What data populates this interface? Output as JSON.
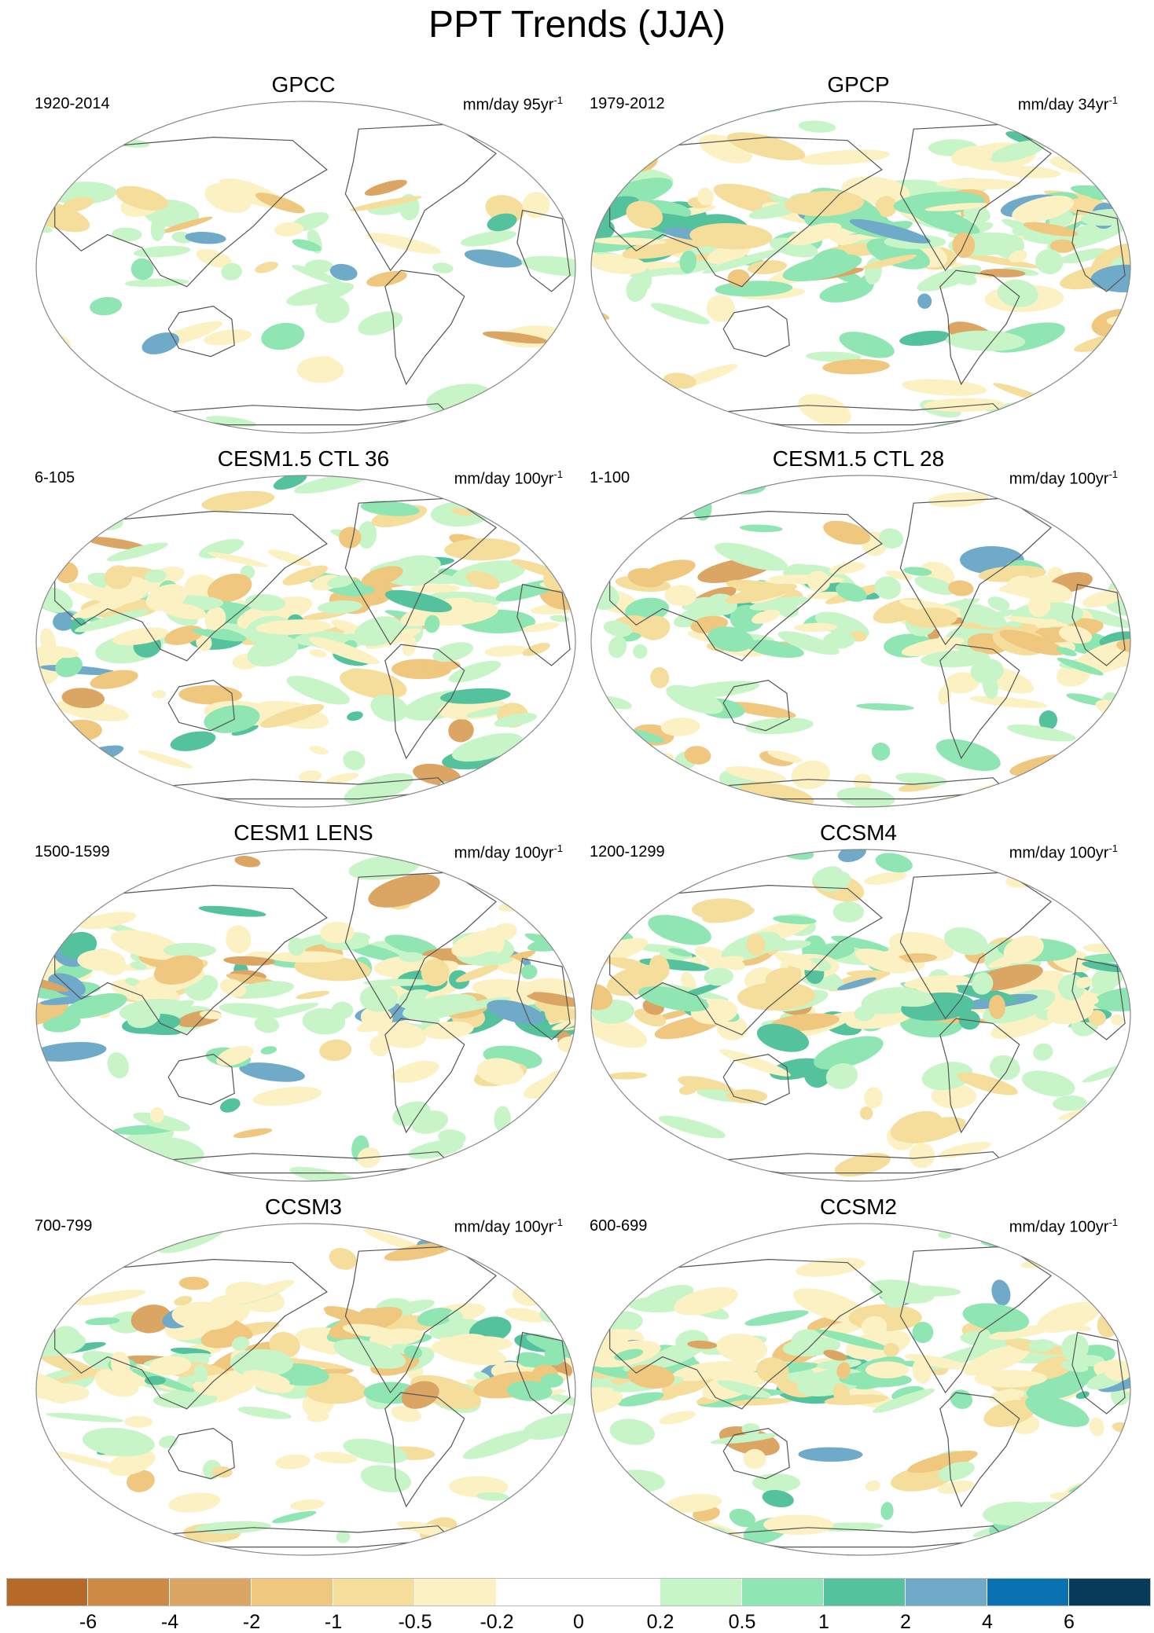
{
  "title": "PPT Trends (JJA)",
  "panels": [
    {
      "title": "GPCC",
      "period": "1920-2014",
      "units": "mm/day 95yr",
      "units_exp": "-1"
    },
    {
      "title": "GPCP",
      "period": "1979-2012",
      "units": "mm/day 34yr",
      "units_exp": "-1"
    },
    {
      "title": "CESM1.5 CTL 36",
      "period": "6-105",
      "units": "mm/day 100yr",
      "units_exp": "-1"
    },
    {
      "title": "CESM1.5 CTL 28",
      "period": "1-100",
      "units": "mm/day 100yr",
      "units_exp": "-1"
    },
    {
      "title": "CESM1 LENS",
      "period": "1500-1599",
      "units": "mm/day 100yr",
      "units_exp": "-1"
    },
    {
      "title": "CCSM4",
      "period": "1200-1299",
      "units": "mm/day 100yr",
      "units_exp": "-1"
    },
    {
      "title": "CCSM3",
      "period": "700-799",
      "units": "mm/day 100yr",
      "units_exp": "-1"
    },
    {
      "title": "CCSM2",
      "period": "600-699",
      "units": "mm/day 100yr",
      "units_exp": "-1"
    }
  ],
  "colorbar": {
    "colors": [
      "#b56a2a",
      "#cd8a45",
      "#dba564",
      "#efc77e",
      "#f5dd9c",
      "#fbf1c2",
      "#ffffff",
      "#ffffff",
      "#c8f5c8",
      "#8fe6b2",
      "#55c29e",
      "#6faac8",
      "#0b72b2",
      "#083a5a"
    ],
    "labels": [
      "-6",
      "-4",
      "-2",
      "-1",
      "-0.5",
      "-0.2",
      "0",
      "0.2",
      "0.5",
      "1",
      "2",
      "4",
      "6"
    ]
  },
  "colors": {
    "coast": "#555555",
    "border": "#888888"
  }
}
